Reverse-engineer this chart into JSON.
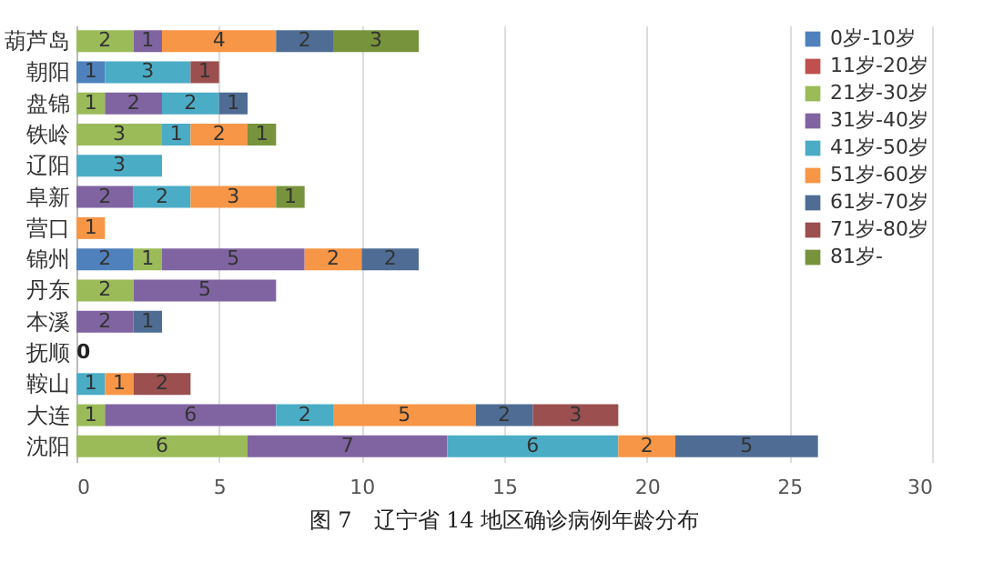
{
  "chart_data": {
    "type": "bar",
    "orientation": "horizontal",
    "stacked": true,
    "title": "图 7　辽宁省 14 地区确诊病例年龄分布",
    "categories": [
      "葫芦岛",
      "朝阳",
      "盘锦",
      "铁岭",
      "辽阳",
      "阜新",
      "营口",
      "锦州",
      "丹东",
      "本溪",
      "抚顺",
      "鞍山",
      "大连",
      "沈阳"
    ],
    "series": [
      {
        "name": "0岁-10岁",
        "color": "#4f81bd",
        "values": [
          null,
          1,
          null,
          null,
          null,
          null,
          null,
          2,
          null,
          null,
          null,
          null,
          null,
          null
        ]
      },
      {
        "name": "11岁-20岁",
        "color": "#c0504d",
        "values": [
          null,
          null,
          null,
          null,
          null,
          null,
          null,
          null,
          null,
          null,
          null,
          null,
          null,
          null
        ]
      },
      {
        "name": "21岁-30岁",
        "color": "#9bbb59",
        "values": [
          2,
          null,
          1,
          3,
          null,
          null,
          null,
          1,
          2,
          null,
          null,
          null,
          1,
          6
        ]
      },
      {
        "name": "31岁-40岁",
        "color": "#8064a2",
        "values": [
          1,
          null,
          2,
          null,
          null,
          2,
          null,
          5,
          5,
          2,
          null,
          null,
          6,
          7
        ]
      },
      {
        "name": "41岁-50岁",
        "color": "#4bacc6",
        "values": [
          null,
          3,
          2,
          1,
          3,
          2,
          null,
          null,
          null,
          null,
          null,
          1,
          2,
          6
        ]
      },
      {
        "name": "51岁-60岁",
        "color": "#f79646",
        "values": [
          4,
          null,
          null,
          2,
          null,
          3,
          1,
          2,
          null,
          null,
          null,
          1,
          5,
          2
        ]
      },
      {
        "name": "61岁-70岁",
        "color": "#4f6d94",
        "values": [
          2,
          null,
          1,
          null,
          null,
          null,
          null,
          2,
          null,
          1,
          null,
          null,
          2,
          5
        ]
      },
      {
        "name": "71岁-80岁",
        "color": "#9b4f4f",
        "values": [
          null,
          1,
          null,
          null,
          null,
          null,
          null,
          null,
          null,
          null,
          null,
          2,
          3,
          null
        ]
      },
      {
        "name": "81岁-",
        "color": "#77933c",
        "values": [
          3,
          null,
          null,
          1,
          null,
          1,
          null,
          null,
          null,
          null,
          null,
          null,
          null,
          null
        ]
      }
    ],
    "xlim": [
      0,
      30
    ],
    "xticks": [
      0,
      5,
      10,
      15,
      20,
      25,
      30
    ],
    "grid": "x",
    "legend": "top right",
    "data_labels": true,
    "annotations": [
      {
        "text": "0",
        "x": 0,
        "y": "抚顺"
      }
    ]
  }
}
